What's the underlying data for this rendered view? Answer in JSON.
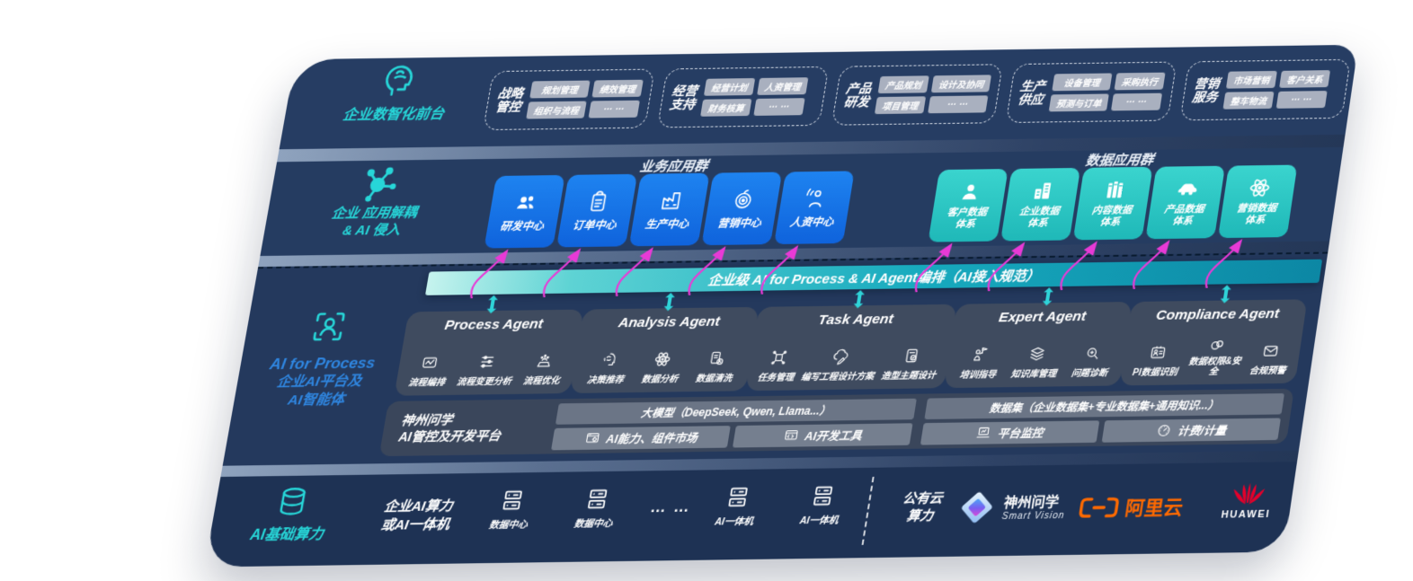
{
  "colors": {
    "panel_bg": "#24395D",
    "infra_bg": "#1E3254",
    "teal_accent": "#27D6D8",
    "blue_box": "#1473E8",
    "teal_box": "#2BC9C5",
    "magenta_arrow": "#E83AD6",
    "orchestration_teal": "#14A8BC",
    "chip_gray": "#A9B0BF",
    "card_slate": "#424D5F",
    "label_blue": "#2F86E0",
    "aliyun_orange": "#FF6A00",
    "huawei_red": "#E4002B"
  },
  "front": {
    "icon": "ai-head-icon",
    "label": "企业数智化前台",
    "groups": [
      {
        "title_l1": "战略",
        "title_l2": "管控",
        "chips": [
          "规划管理",
          "绩效管理",
          "组织与流程",
          "… …"
        ]
      },
      {
        "title_l1": "经营",
        "title_l2": "支持",
        "chips": [
          "经营计划",
          "人资管理",
          "财务核算",
          "… …"
        ]
      },
      {
        "title_l1": "产品",
        "title_l2": "研发",
        "chips": [
          "产品规划",
          "设计及协同",
          "项目管理",
          "… …"
        ]
      },
      {
        "title_l1": "生产",
        "title_l2": "供应",
        "chips": [
          "设备管理",
          "采购执行",
          "预测与订单",
          "… …"
        ]
      },
      {
        "title_l1": "营销",
        "title_l2": "服务",
        "chips": [
          "市场营销",
          "客户关系",
          "整车物流",
          "… …"
        ]
      }
    ]
  },
  "apps": {
    "icon": "molecule-icon",
    "label_l1": "企业 应用解耦",
    "label_l2": "& AI 侵入",
    "business_group_title": "业务应用群",
    "data_group_title": "数据应用群",
    "business_apps": [
      {
        "label": "研发中心",
        "icon": "team-icon"
      },
      {
        "label": "订单中心",
        "icon": "clipboard-icon"
      },
      {
        "label": "生产中心",
        "icon": "factory-icon"
      },
      {
        "label": "营销中心",
        "icon": "target-icon"
      },
      {
        "label": "人资中心",
        "icon": "hr-icon"
      }
    ],
    "data_apps": [
      {
        "label_l1": "客户数据",
        "label_l2": "体系",
        "icon": "person-icon"
      },
      {
        "label_l1": "企业数据",
        "label_l2": "体系",
        "icon": "building-icon"
      },
      {
        "label_l1": "内容数据",
        "label_l2": "体系",
        "icon": "books-icon"
      },
      {
        "label_l1": "产品数据",
        "label_l2": "体系",
        "icon": "car-icon"
      },
      {
        "label_l1": "营销数据",
        "label_l2": "体系",
        "icon": "atom-icon"
      }
    ]
  },
  "orchestration": {
    "label": "企业级 AI for Process & AI Agent编排（AI接入规范）"
  },
  "core": {
    "icon": "scan-person-icon",
    "label_l1": "AI for Process",
    "label_l2": "企业AI平台及",
    "label_l3": "AI智能体",
    "agents": [
      {
        "title": "Process Agent",
        "items": [
          {
            "label": "流程编排",
            "icon": "flow-icon"
          },
          {
            "label": "流程变更分析",
            "icon": "timeline-icon"
          },
          {
            "label": "流程优化",
            "icon": "optimize-icon"
          }
        ]
      },
      {
        "title": "Analysis Agent",
        "items": [
          {
            "label": "决策推荐",
            "icon": "idea-head-icon"
          },
          {
            "label": "数据分析",
            "icon": "atom-icon"
          },
          {
            "label": "数据清洗",
            "icon": "doc-clean-icon"
          }
        ]
      },
      {
        "title": "Task Agent",
        "items": [
          {
            "label": "任务管理",
            "icon": "task-grid-icon"
          },
          {
            "label": "编写工程设计方案",
            "icon": "cloud-edit-icon"
          },
          {
            "label": "造型主题设计",
            "icon": "doc-check-icon"
          }
        ]
      },
      {
        "title": "Expert Agent",
        "items": [
          {
            "label": "培训指导",
            "icon": "training-icon"
          },
          {
            "label": "知识库管理",
            "icon": "layers-icon"
          },
          {
            "label": "问题诊断",
            "icon": "diagnose-icon"
          }
        ]
      },
      {
        "title": "Compliance Agent",
        "items": [
          {
            "label": "PI数据识别",
            "icon": "id-card-icon"
          },
          {
            "label": "数据权限&安全",
            "icon": "link-icon"
          },
          {
            "label": "合规预警",
            "icon": "mail-alert-icon"
          }
        ]
      }
    ],
    "devplatform": {
      "label_l1": "神州问学",
      "label_l2": "AI管控及开发平台",
      "model_bar": "大模型（DeepSeek, Qwen, Llama...）",
      "dataset_bar": "数据集（企业数据集+专业数据集+通用知识...）",
      "cells": [
        {
          "label": "AI能力、组件市场",
          "icon": "component-icon"
        },
        {
          "label": "AI开发工具",
          "icon": "devtools-icon"
        },
        {
          "label": "平台监控",
          "icon": "monitor-icon"
        },
        {
          "label": "计费/计量",
          "icon": "gauge-icon"
        }
      ]
    }
  },
  "infra": {
    "icon": "database-icon",
    "label": "AI基础算力",
    "compute_l1": "企业AI算力",
    "compute_l2": "或AI一体机",
    "nodes": [
      {
        "label": "数据中心",
        "icon": "server-icon"
      },
      {
        "label": "数据中心",
        "icon": "server-icon"
      },
      {
        "label": "AI一体机",
        "icon": "server-icon"
      },
      {
        "label": "AI一体机",
        "icon": "server-icon"
      }
    ],
    "dots": "… …",
    "cloud_l1": "公有云",
    "cloud_l2": "算力",
    "vendors": {
      "smartvision": {
        "name": "神州问学",
        "sub": "Smart Vision",
        "icon": "smartvision-logo"
      },
      "aliyun": {
        "name": "阿里云",
        "icon": "aliyun-logo"
      },
      "huawei": {
        "name": "HUAWEI",
        "icon": "huawei-logo"
      }
    }
  }
}
